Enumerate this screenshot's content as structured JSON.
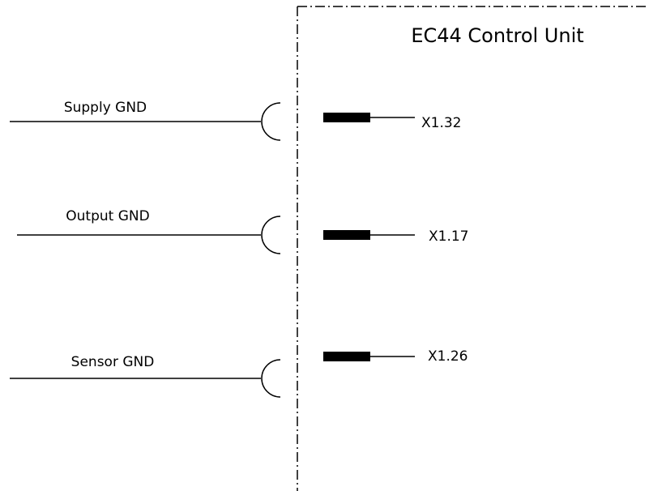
{
  "unit": {
    "title": "EC44 Control Unit"
  },
  "connections": [
    {
      "wire_label": "Supply GND",
      "pin_label": "X1.32"
    },
    {
      "wire_label": "Output GND",
      "pin_label": "X1.17"
    },
    {
      "wire_label": "Sensor GND",
      "pin_label": "X1.26"
    }
  ]
}
